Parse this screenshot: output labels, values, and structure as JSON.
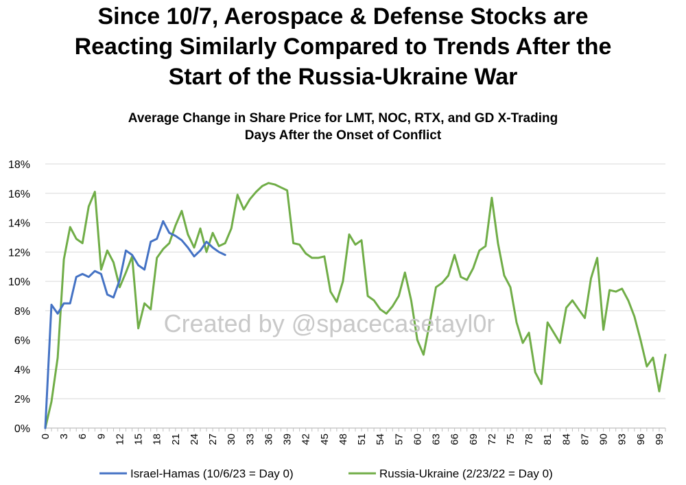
{
  "title": "Since 10/7, Aerospace & Defense Stocks are\nReacting Similarly Compared to Trends After the\nStart of the Russia-Ukraine War",
  "subtitle": "Average Change in Share Price for LMT, NOC, RTX, and GD X-Trading\nDays After the Onset of Conflict",
  "watermark": "Created by @spacecasetayl0r",
  "chart_data": {
    "type": "line",
    "xlim": [
      0,
      100
    ],
    "ylim": [
      0,
      18
    ],
    "y_ticks": [
      "0%",
      "2%",
      "4%",
      "6%",
      "8%",
      "10%",
      "12%",
      "14%",
      "16%",
      "18%"
    ],
    "x_ticks": [
      "0",
      "3",
      "6",
      "9",
      "12",
      "15",
      "18",
      "21",
      "24",
      "27",
      "30",
      "33",
      "36",
      "39",
      "42",
      "45",
      "48",
      "51",
      "54",
      "57",
      "60",
      "63",
      "66",
      "69",
      "72",
      "75",
      "78",
      "81",
      "84",
      "87",
      "90",
      "93",
      "96",
      "99"
    ],
    "grid": "horizontal",
    "legend_position": "bottom",
    "series": [
      {
        "name": "Israel-Hamas (10/6/23 = Day 0)",
        "color": "#4472c4",
        "x": [
          0,
          1,
          2,
          3,
          4,
          5,
          6,
          7,
          8,
          9,
          10,
          11,
          12,
          13,
          14,
          15,
          16,
          17,
          18,
          19,
          20,
          21,
          22,
          23,
          24,
          25,
          26,
          27,
          28,
          29
        ],
        "values": [
          0,
          8.4,
          7.8,
          8.5,
          8.5,
          10.3,
          10.5,
          10.3,
          10.7,
          10.5,
          9.1,
          8.9,
          10.1,
          12.1,
          11.8,
          11.1,
          10.8,
          12.7,
          12.9,
          14.1,
          13.3,
          13.1,
          12.8,
          12.3,
          11.7,
          12.1,
          12.7,
          12.3,
          12.0,
          11.8
        ]
      },
      {
        "name": "Russia-Ukraine (2/23/22 = Day 0)",
        "color": "#70ad47",
        "x": [
          0,
          1,
          2,
          3,
          4,
          5,
          6,
          7,
          8,
          9,
          10,
          11,
          12,
          13,
          14,
          15,
          16,
          17,
          18,
          19,
          20,
          21,
          22,
          23,
          24,
          25,
          26,
          27,
          28,
          29,
          30,
          31,
          32,
          33,
          34,
          35,
          36,
          37,
          38,
          39,
          40,
          41,
          42,
          43,
          44,
          45,
          46,
          47,
          48,
          49,
          50,
          51,
          52,
          53,
          54,
          55,
          56,
          57,
          58,
          59,
          60,
          61,
          62,
          63,
          64,
          65,
          66,
          67,
          68,
          69,
          70,
          71,
          72,
          73,
          74,
          75,
          76,
          77,
          78,
          79,
          80,
          81,
          82,
          83,
          84,
          85,
          86,
          87,
          88,
          89,
          90,
          91,
          92,
          93,
          94,
          95,
          96,
          97,
          98,
          99,
          100
        ],
        "values": [
          0,
          1.8,
          4.8,
          11.5,
          13.7,
          12.9,
          12.6,
          15.1,
          16.1,
          10.8,
          12.1,
          11.3,
          9.6,
          10.6,
          11.7,
          6.8,
          8.5,
          8.1,
          11.6,
          12.2,
          12.6,
          13.8,
          14.8,
          13.2,
          12.3,
          13.6,
          12.0,
          13.3,
          12.4,
          12.6,
          13.6,
          15.9,
          14.9,
          15.6,
          16.1,
          16.5,
          16.7,
          16.6,
          16.4,
          16.2,
          12.6,
          12.5,
          11.9,
          11.6,
          11.6,
          11.7,
          9.3,
          8.6,
          10.0,
          13.2,
          12.5,
          12.8,
          9.0,
          8.7,
          8.1,
          7.8,
          8.3,
          9.0,
          10.6,
          8.7,
          6.0,
          5.0,
          7.2,
          9.6,
          9.9,
          10.4,
          11.8,
          10.3,
          10.1,
          10.9,
          12.1,
          12.4,
          15.7,
          12.6,
          10.4,
          9.6,
          7.2,
          5.8,
          6.5,
          3.8,
          3.0,
          7.2,
          6.5,
          5.8,
          8.2,
          8.7,
          8.1,
          7.5,
          10.2,
          11.6,
          6.7,
          9.4,
          9.3,
          9.5,
          8.7,
          7.6,
          6.0,
          4.2,
          4.8,
          2.5,
          5.0
        ]
      }
    ]
  }
}
